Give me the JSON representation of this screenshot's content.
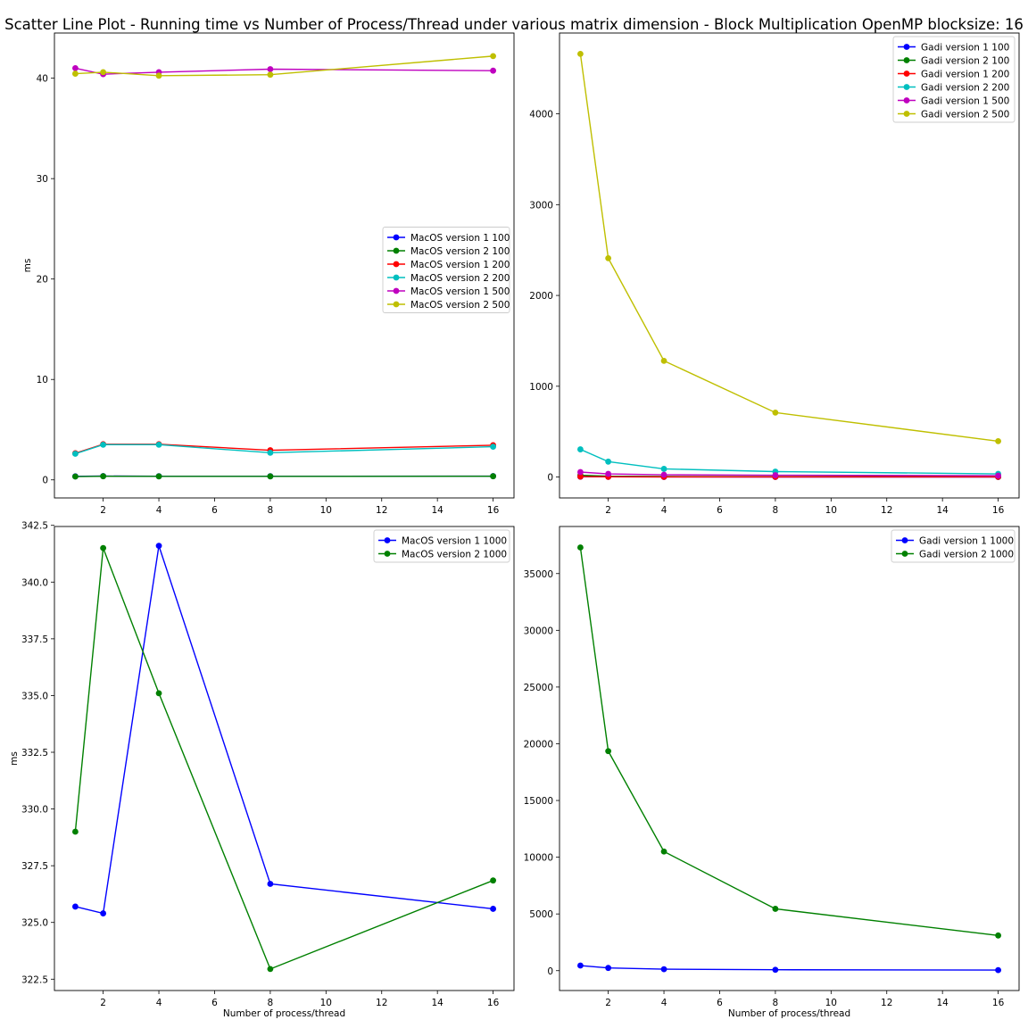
{
  "suptitle": "Scatter Line Plot - Running time vs Number of Process/Thread under various matrix dimension - Block Multiplication OpenMP blocksize: 16",
  "chart_data": [
    {
      "type": "line",
      "ylabel": "ms",
      "xlabel": "",
      "x": [
        1,
        2,
        4,
        8,
        16
      ],
      "xlim": [
        0.25,
        16.75
      ],
      "ylim": [
        -1.8,
        44.5
      ],
      "xticks": [
        2,
        4,
        6,
        8,
        10,
        12,
        14,
        16
      ],
      "yticks": [
        0,
        10,
        20,
        30,
        40
      ],
      "ytick_decimals": 0,
      "legend": "center-right",
      "series": [
        {
          "name": "MacOS version 1 100",
          "color": "#0000ff",
          "values": [
            0.35,
            0.38,
            0.36,
            0.36,
            0.37
          ]
        },
        {
          "name": "MacOS version 2 100",
          "color": "#008000",
          "values": [
            0.33,
            0.36,
            0.35,
            0.35,
            0.36
          ]
        },
        {
          "name": "MacOS version 1 200",
          "color": "#ff0000",
          "values": [
            2.65,
            3.55,
            3.55,
            2.95,
            3.45
          ]
        },
        {
          "name": "MacOS version 2 200",
          "color": "#00bfbf",
          "values": [
            2.6,
            3.5,
            3.5,
            2.7,
            3.3
          ]
        },
        {
          "name": "MacOS version 1 500",
          "color": "#bf00bf",
          "values": [
            41.0,
            40.4,
            40.6,
            40.9,
            40.75
          ]
        },
        {
          "name": "MacOS version 2 500",
          "color": "#bfbf00",
          "values": [
            40.45,
            40.6,
            40.25,
            40.35,
            42.2
          ]
        }
      ]
    },
    {
      "type": "line",
      "ylabel": "",
      "xlabel": "",
      "x": [
        1,
        2,
        4,
        8,
        16
      ],
      "xlim": [
        0.25,
        16.75
      ],
      "ylim": [
        -230,
        4890
      ],
      "xticks": [
        2,
        4,
        6,
        8,
        10,
        12,
        14,
        16
      ],
      "yticks": [
        0,
        1000,
        2000,
        3000,
        4000
      ],
      "ytick_decimals": 0,
      "legend": "top-right",
      "series": [
        {
          "name": "Gadi version 1 100",
          "color": "#0000ff",
          "values": [
            4,
            2.5,
            1.5,
            1,
            1
          ]
        },
        {
          "name": "Gadi version 2 100",
          "color": "#008000",
          "values": [
            20,
            10,
            6,
            4,
            3
          ]
        },
        {
          "name": "Gadi version 1 200",
          "color": "#ff0000",
          "values": [
            5,
            3,
            2,
            2,
            2
          ]
        },
        {
          "name": "Gadi version 2 200",
          "color": "#00bfbf",
          "values": [
            305,
            170,
            90,
            60,
            35
          ]
        },
        {
          "name": "Gadi version 1 500",
          "color": "#bf00bf",
          "values": [
            55,
            35,
            25,
            20,
            15
          ]
        },
        {
          "name": "Gadi version 2 500",
          "color": "#bfbf00",
          "values": [
            4660,
            2410,
            1280,
            710,
            395
          ]
        }
      ]
    },
    {
      "type": "line",
      "ylabel": "ms",
      "xlabel": "Number of process/thread",
      "x": [
        1,
        2,
        4,
        8,
        16
      ],
      "xlim": [
        0.25,
        16.75
      ],
      "ylim": [
        322.0,
        342.45
      ],
      "xticks": [
        2,
        4,
        6,
        8,
        10,
        12,
        14,
        16
      ],
      "yticks": [
        322.5,
        325.0,
        327.5,
        330.0,
        332.5,
        335.0,
        337.5,
        340.0,
        342.5
      ],
      "ytick_decimals": 1,
      "legend": "top-right",
      "series": [
        {
          "name": "MacOS version 1 1000",
          "color": "#0000ff",
          "values": [
            325.7,
            325.4,
            341.6,
            326.7,
            325.6
          ]
        },
        {
          "name": "MacOS version 2 1000",
          "color": "#008000",
          "values": [
            329.0,
            341.5,
            335.1,
            322.95,
            326.85
          ]
        }
      ]
    },
    {
      "type": "line",
      "ylabel": "",
      "xlabel": "Number of process/thread",
      "x": [
        1,
        2,
        4,
        8,
        16
      ],
      "xlim": [
        0.25,
        16.75
      ],
      "ylim": [
        -1750,
        39150
      ],
      "xticks": [
        2,
        4,
        6,
        8,
        10,
        12,
        14,
        16
      ],
      "yticks": [
        0,
        5000,
        10000,
        15000,
        20000,
        25000,
        30000,
        35000
      ],
      "ytick_decimals": 0,
      "legend": "top-right",
      "series": [
        {
          "name": "Gadi version 1 1000",
          "color": "#0000ff",
          "values": [
            450,
            240,
            130,
            80,
            50
          ]
        },
        {
          "name": "Gadi version 2 1000",
          "color": "#008000",
          "values": [
            37300,
            19350,
            10500,
            5450,
            3100
          ]
        }
      ]
    }
  ]
}
